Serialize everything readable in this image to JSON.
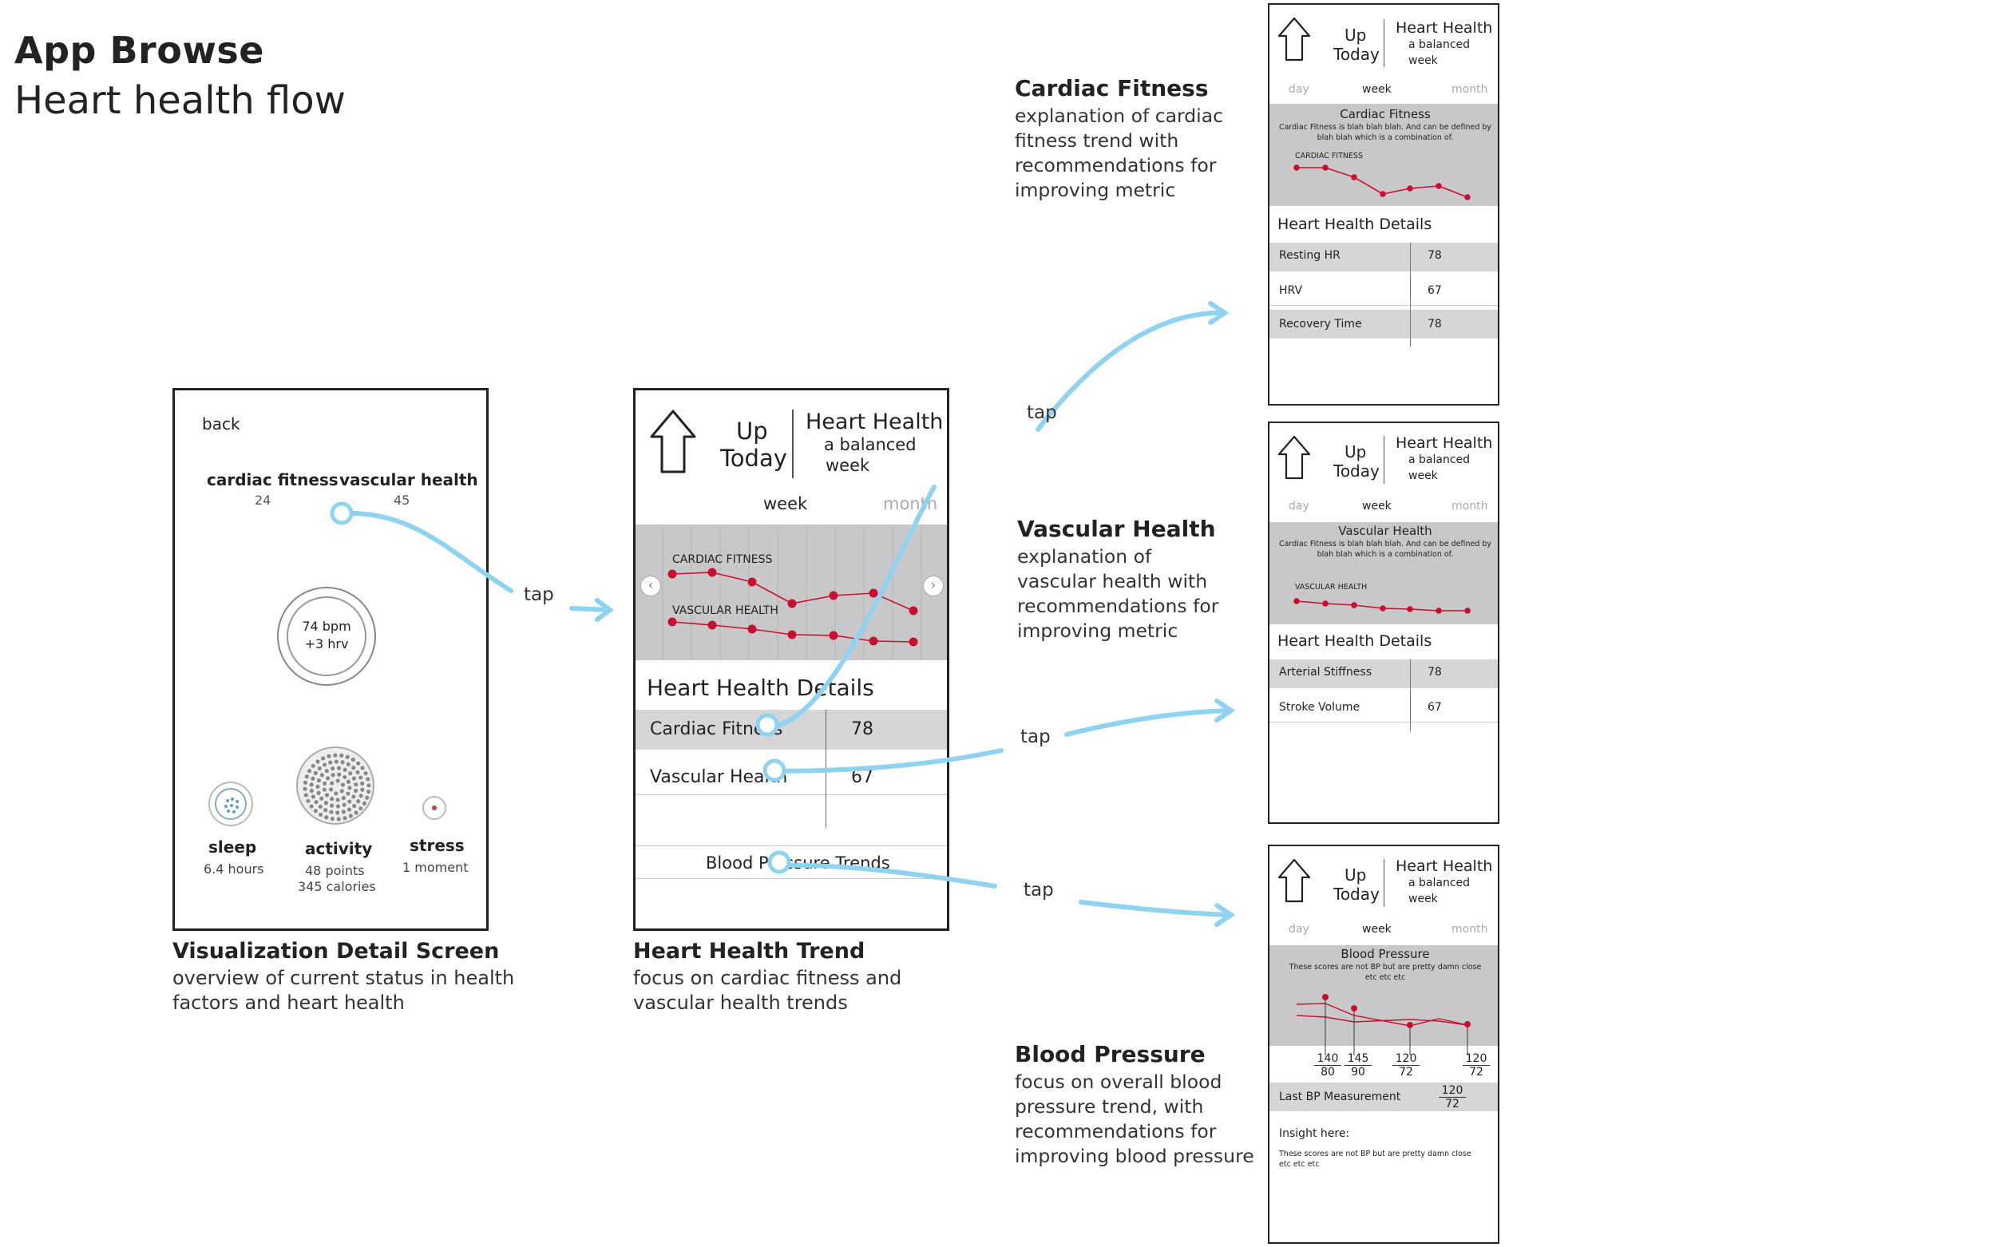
{
  "header": {
    "title": "App Browse",
    "subtitle": "Heart health flow"
  },
  "screen1": {
    "back": "back",
    "cardiac_label": "cardiac fitness",
    "cardiac_value": "24",
    "vascular_label": "vascular health",
    "vascular_value": "45",
    "bpm": "74 bpm",
    "hrv": "+3 hrv",
    "sleep_label": "sleep",
    "sleep_value": "6.4 hours",
    "activity_label": "activity",
    "activity_points": "48 points",
    "activity_calories": "345 calories",
    "stress_label": "stress",
    "stress_value": "1 moment",
    "caption_title": "Visualization Detail Screen",
    "caption_line1": "overview of current status in health",
    "caption_line2": "factors and heart health"
  },
  "screen2": {
    "up": "Up",
    "today": "Today",
    "heading": "Heart Health",
    "sub1": "a balanced",
    "sub2": "week",
    "tab_week": "week",
    "tab_month": "month",
    "chart_cardiac": "CARDIAC FITNESS",
    "chart_vascular": "VASCULAR HEALTH",
    "details_title": "Heart Health Details",
    "rows": [
      {
        "label": "Cardiac Fitness",
        "value": "78"
      },
      {
        "label": "Vascular Health",
        "value": "67"
      }
    ],
    "bp_trends": "Blood Pressure Trends",
    "caption_title": "Heart Health Trend",
    "caption_line1": "focus on cardiac fitness and",
    "caption_line2": "vascular health trends"
  },
  "tap_label": "tap",
  "cardiac_desc": {
    "title": "Cardiac Fitness",
    "lines": [
      "explanation of cardiac",
      "fitness trend with",
      "recommendations for",
      "improving metric"
    ]
  },
  "vascular_desc": {
    "title": "Vascular Health",
    "lines": [
      "explanation of",
      "vascular health with",
      "recommendations for",
      "improving metric"
    ]
  },
  "bp_desc": {
    "title": "Blood Pressure",
    "lines": [
      "focus on overall blood",
      "pressure trend, with",
      "recommendations for",
      "improving blood pressure"
    ]
  },
  "mini_common": {
    "up": "Up",
    "today": "Today",
    "heading": "Heart Health",
    "sub1": "a balanced",
    "sub2": "week",
    "tab_day": "day",
    "tab_week": "week",
    "tab_month": "month",
    "details_title": "Heart Health Details"
  },
  "mini_cardiac": {
    "chart_title": "Cardiac Fitness",
    "chart_text1": "Cardiac Fitness is blah blah blah. And can be defined by",
    "chart_text2": "blah blah which is a combination of.",
    "series_label": "CARDIAC FITNESS",
    "rows": [
      {
        "label": "Resting HR",
        "value": "78"
      },
      {
        "label": "HRV",
        "value": "67"
      },
      {
        "label": "Recovery Time",
        "value": "78"
      }
    ]
  },
  "mini_vascular": {
    "chart_title": "Vascular Health",
    "chart_text1": "Cardiac Fitness is blah blah blah. And can be defined by",
    "chart_text2": "blah blah which is a combination of.",
    "series_label": "VASCULAR HEALTH",
    "rows": [
      {
        "label": "Arterial Stiffness",
        "value": "78"
      },
      {
        "label": "Stroke Volume",
        "value": "67"
      }
    ]
  },
  "mini_bp": {
    "chart_title": "Blood Pressure",
    "chart_text1": "These scores are not BP but are pretty damn close",
    "chart_text2": "etc etc etc",
    "readings": [
      {
        "sys": "140",
        "dia": "80"
      },
      {
        "sys": "145",
        "dia": "90"
      },
      {
        "sys": "120",
        "dia": "72"
      },
      {
        "sys": "120",
        "dia": "72"
      }
    ],
    "last_label": "Last BP Measurement",
    "last_sys": "120",
    "last_dia": "72",
    "insight_title": "Insight here:",
    "insight_text1": "These scores are not BP but are pretty damn close",
    "insight_text2": "etc etc etc"
  },
  "colors": {
    "accent_red": "#c8102e",
    "flow_blue": "#8fd3f0",
    "panel_gray": "#c8c8ca"
  }
}
